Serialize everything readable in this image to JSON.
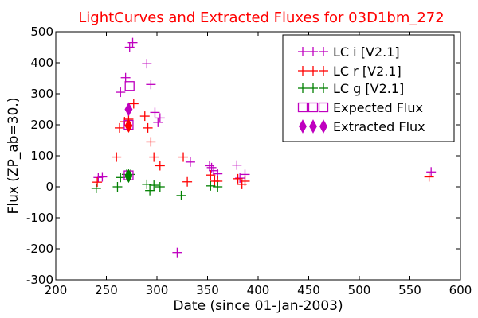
{
  "chart_data": {
    "type": "scatter",
    "title": "LightCurves and Extracted Fluxes for 03D1bm_272",
    "xlabel": "Date (since 01-Jan-2003)",
    "ylabel": "Flux (ZP_ab=30.)",
    "xlim": [
      200,
      600
    ],
    "ylim": [
      -300,
      500
    ],
    "xticks": [
      200,
      250,
      300,
      350,
      400,
      450,
      500,
      550,
      600
    ],
    "yticks": [
      -300,
      -200,
      -100,
      0,
      100,
      200,
      300,
      400,
      500
    ],
    "grid": false,
    "legend_position": "top-right",
    "colors": {
      "lc_i": "#bf00bf",
      "lc_r": "#ff0000",
      "lc_g": "#008000",
      "expected": "#bf00bf",
      "extracted": "#bf00bf"
    },
    "series": [
      {
        "name": "LC i [V2.1]",
        "marker": "plus",
        "color": "#bf00bf",
        "points": [
          [
            242,
            30
          ],
          [
            246,
            32
          ],
          [
            264,
            305
          ],
          [
            269,
            352
          ],
          [
            273,
            450
          ],
          [
            276,
            465
          ],
          [
            290,
            397
          ],
          [
            294,
            330
          ],
          [
            298,
            240
          ],
          [
            301,
            208
          ],
          [
            303,
            222
          ],
          [
            320,
            -212
          ],
          [
            333,
            80
          ],
          [
            352,
            68
          ],
          [
            354,
            62
          ],
          [
            356,
            52
          ],
          [
            360,
            42
          ],
          [
            379,
            70
          ],
          [
            382,
            28
          ],
          [
            387,
            40
          ],
          [
            571,
            48
          ]
        ]
      },
      {
        "name": "LC r [V2.1]",
        "marker": "plus",
        "color": "#ff0000",
        "points": [
          [
            241,
            15
          ],
          [
            260,
            96
          ],
          [
            263,
            190
          ],
          [
            268,
            210
          ],
          [
            272,
            218
          ],
          [
            277,
            268
          ],
          [
            288,
            228
          ],
          [
            291,
            190
          ],
          [
            294,
            145
          ],
          [
            297,
            96
          ],
          [
            303,
            68
          ],
          [
            326,
            96
          ],
          [
            330,
            16
          ],
          [
            353,
            38
          ],
          [
            357,
            18
          ],
          [
            360,
            18
          ],
          [
            380,
            26
          ],
          [
            384,
            8
          ],
          [
            387,
            18
          ],
          [
            569,
            32
          ]
        ]
      },
      {
        "name": "LC g [V2.1]",
        "marker": "plus",
        "color": "#008000",
        "points": [
          [
            240,
            -5
          ],
          [
            261,
            0
          ],
          [
            264,
            30
          ],
          [
            270,
            40
          ],
          [
            274,
            40
          ],
          [
            290,
            8
          ],
          [
            293,
            -12
          ],
          [
            297,
            5
          ],
          [
            303,
            0
          ],
          [
            324,
            -28
          ],
          [
            353,
            3
          ],
          [
            360,
            0
          ]
        ]
      },
      {
        "name": "Expected Flux",
        "marker": "square",
        "color": "#bf00bf",
        "points": [
          [
            273,
            325
          ],
          [
            272,
            200
          ],
          [
            272,
            37
          ]
        ]
      },
      {
        "name": "Extracted Flux",
        "marker": "diamond",
        "points": [
          [
            272,
            250,
            "#bf00bf"
          ],
          [
            272,
            197,
            "#ff0000"
          ],
          [
            272,
            35,
            "#008000"
          ]
        ]
      }
    ]
  }
}
